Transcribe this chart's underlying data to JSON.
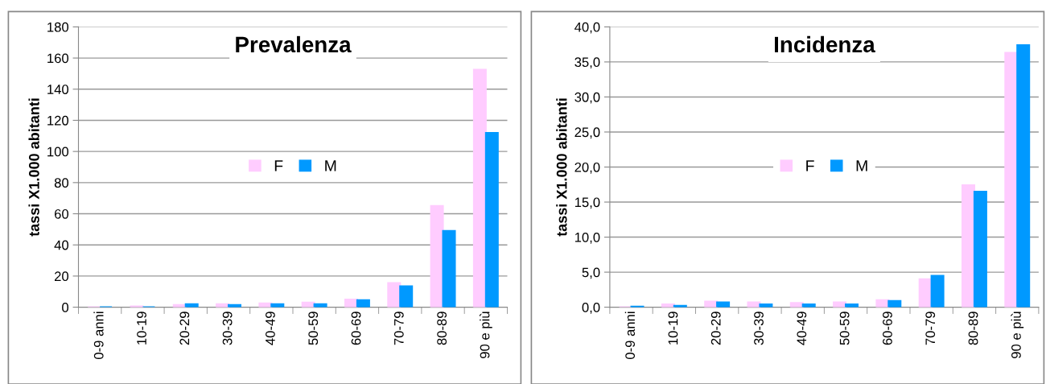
{
  "chart_data": [
    {
      "type": "bar",
      "title": "Prevalenza",
      "ylabel": "tassi X1.000 abitanti",
      "categories": [
        "0-9 anni",
        "10-19",
        "20-29",
        "30-39",
        "40-49",
        "50-59",
        "60-69",
        "70-79",
        "80-89",
        "90 e più"
      ],
      "series": [
        {
          "name": "F",
          "color": "#ffccff",
          "values": [
            0,
            0.5,
            1.5,
            2,
            2.5,
            3,
            5,
            15.5,
            65,
            152.5
          ]
        },
        {
          "name": "M",
          "color": "#0099ff",
          "values": [
            0,
            0,
            2,
            1.5,
            2,
            2,
            4.5,
            13.5,
            49,
            112
          ]
        }
      ],
      "ylim": [
        0,
        180
      ],
      "yticks": [
        0,
        20,
        40,
        60,
        80,
        100,
        120,
        140,
        160,
        180
      ],
      "grid": "y",
      "legend": "center"
    },
    {
      "type": "bar",
      "title": "Incidenza",
      "ylabel": "tassi X1.000 abitanti",
      "categories": [
        "0-9 anni",
        "10-19",
        "20-29",
        "30-39",
        "40-49",
        "50-59",
        "60-69",
        "70-79",
        "80-89",
        "90 e più"
      ],
      "series": [
        {
          "name": "F",
          "color": "#ffccff",
          "values": [
            0,
            0.4,
            0.8,
            0.7,
            0.6,
            0.7,
            1.0,
            4.0,
            17.4,
            36.3
          ]
        },
        {
          "name": "M",
          "color": "#0099ff",
          "values": [
            0.1,
            0.2,
            0.7,
            0.4,
            0.4,
            0.4,
            0.9,
            4.5,
            16.5,
            37.4
          ]
        }
      ],
      "ylim": [
        0,
        40
      ],
      "yticks": [
        {
          "value": 0,
          "label": "0,0"
        },
        {
          "value": 5,
          "label": "5,0"
        },
        {
          "value": 10,
          "label": "10,0"
        },
        {
          "value": 15,
          "label": "15,0"
        },
        {
          "value": 20,
          "label": "20,0"
        },
        {
          "value": 25,
          "label": "25,0"
        },
        {
          "value": 30,
          "label": "30,0"
        },
        {
          "value": 35,
          "label": "35,0"
        },
        {
          "value": 40,
          "label": "40,0"
        }
      ],
      "grid": "y",
      "legend": "center"
    }
  ]
}
